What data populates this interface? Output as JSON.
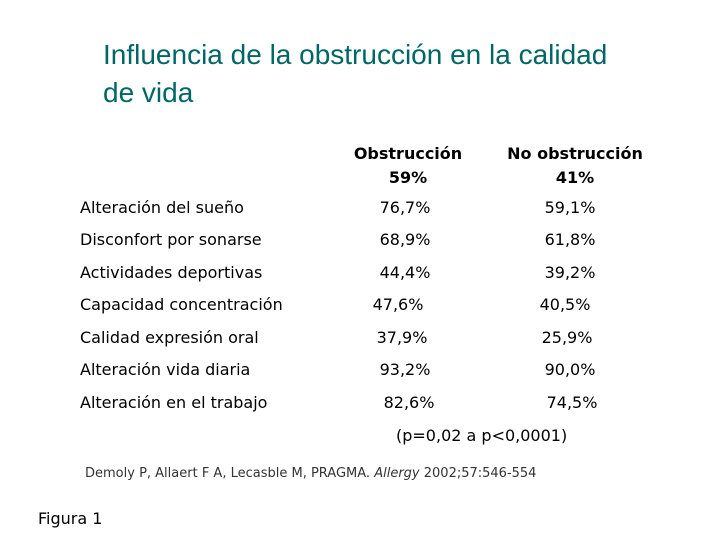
{
  "title": "Influencia de la obstrucción en la calidad de vida",
  "columns": [
    {
      "line1": "Obstrucción",
      "line2": "59%"
    },
    {
      "line1": "No obstrucción",
      "line2": "41%"
    }
  ],
  "rows": [
    {
      "label": "Alteración del sueño",
      "obstruccion": "76,7%",
      "no_obstruccion": "59,1%"
    },
    {
      "label": "Disconfort por sonarse",
      "obstruccion": "68,9%",
      "no_obstruccion": "61,8%"
    },
    {
      "label": "Actividades deportivas",
      "obstruccion": "44,4%",
      "no_obstruccion": "39,2%"
    },
    {
      "label": "Capacidad concentración",
      "obstruccion": "47,6%",
      "no_obstruccion": "40,5%"
    },
    {
      "label": "Calidad expresión oral",
      "obstruccion": "37,9%",
      "no_obstruccion": "25,9%"
    },
    {
      "label": "Alteración vida diaria",
      "obstruccion": "93,2%",
      "no_obstruccion": "90,0%"
    },
    {
      "label": "Alteración en el trabajo",
      "obstruccion": "82,6%",
      "no_obstruccion": "74,5%"
    }
  ],
  "p_value": "(p=0,02 a p<0,0001)",
  "citation": {
    "authors": "Demoly P, Allaert F A, Lecasble M, PRAGMA.",
    "journal": "Allergy",
    "details": "2002;57:546-554"
  },
  "figure_label": "Figura 1",
  "colors": {
    "title": "#006666",
    "text": "#000000",
    "background": "#ffffff"
  }
}
